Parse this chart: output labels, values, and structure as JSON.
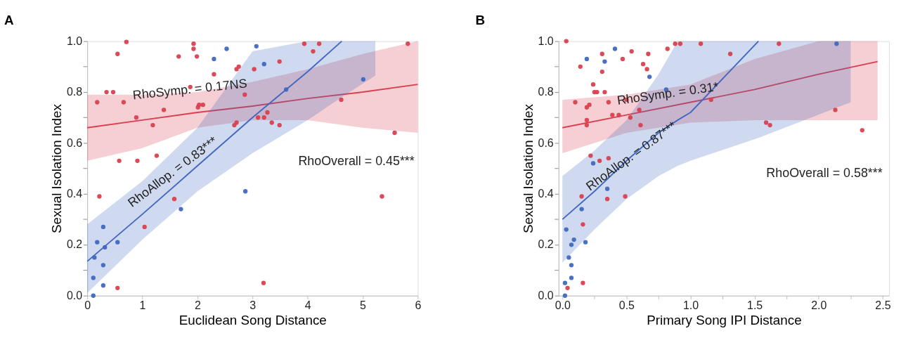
{
  "chart_data": [
    {
      "type": "scatter",
      "title": "A",
      "xlabel": "Euclidean Song Distance",
      "ylabel": "Sexual Isolation Index",
      "xlim": [
        0,
        6
      ],
      "ylim": [
        0,
        1.0
      ],
      "xticks": [
        0,
        1,
        2,
        3,
        4,
        5,
        6
      ],
      "yticks": [
        {
          "value": 0,
          "label": "0.0"
        },
        {
          "value": 0.1,
          "label": null
        },
        {
          "value": 0.2,
          "label": "0.2"
        },
        {
          "value": 0.3,
          "label": null
        },
        {
          "value": 0.4,
          "label": "0.4"
        },
        {
          "value": 0.5,
          "label": null
        },
        {
          "value": 0.6,
          "label": "0.6"
        },
        {
          "value": 0.7,
          "label": null
        },
        {
          "value": 0.8,
          "label": "0.8"
        },
        {
          "value": 0.9,
          "label": null
        },
        {
          "value": 1.0,
          "label": "1.0"
        }
      ],
      "grid": false,
      "legend": false,
      "marker": "circle",
      "series": [
        {
          "type": "line",
          "marker": "none",
          "line_style": "solid",
          "color": "#d9404f",
          "x": [
            0,
            1,
            2,
            3,
            4,
            5,
            6
          ],
          "values": [
            0.66,
            0.69,
            0.72,
            0.745,
            0.775,
            0.8,
            0.83
          ],
          "upper": [
            0.79,
            0.79,
            0.8,
            0.84,
            0.89,
            0.95,
            1.0
          ],
          "lower": [
            0.53,
            0.58,
            0.66,
            0.69,
            0.69,
            0.66,
            0.64
          ]
        },
        {
          "type": "line",
          "marker": "none",
          "line_style": "solid",
          "color": "#4068c0",
          "x": [
            0,
            1,
            2,
            3,
            4,
            4.62,
            5.23
          ],
          "values": [
            0.135,
            0.32,
            0.51,
            0.7,
            0.88,
            1.0,
            null
          ],
          "upper": [
            0.28,
            0.45,
            0.66,
            0.96,
            1.0,
            1.0,
            1.0
          ],
          "lower": [
            0.01,
            0.22,
            0.41,
            0.56,
            0.69,
            0.78,
            0.865
          ]
        },
        {
          "color": "#d9404f",
          "x": [
            0.71,
            0.55,
            0.18,
            0.66,
            0.35,
            0.47,
            0.89,
            1.19,
            0.91,
            0.58,
            1.26,
            0.22,
            1.04,
            1.58,
            0.55,
            1.66,
            1.93,
            1.93,
            1.99,
            1.87,
            2.3,
            2.71,
            2.75,
            3.03,
            2.01,
            2.03,
            2.1,
            1.39,
            2.67,
            2.71,
            2.86,
            3.1,
            3.21,
            3.27,
            3.35,
            3.49,
            3.49,
            3.94,
            4.1,
            4.21,
            4.61,
            5.58,
            5.35,
            5.82,
            3.2
          ],
          "values": [
            0.997,
            0.95,
            0.76,
            0.76,
            0.8,
            0.8,
            0.7,
            0.67,
            0.53,
            0.53,
            0.55,
            0.39,
            0.27,
            0.38,
            0.03,
            0.94,
            0.99,
            0.97,
            0.94,
            0.82,
            0.87,
            0.89,
            0.9,
            0.89,
            0.74,
            0.75,
            0.75,
            0.73,
            0.67,
            0.68,
            0.79,
            0.7,
            0.7,
            0.72,
            0.68,
            0.67,
            0.92,
            0.99,
            0.96,
            0.99,
            0.77,
            0.64,
            0.39,
            0.99,
            0.05
          ]
        },
        {
          "color": "#4068c0",
          "x": [
            0.11,
            0.11,
            0.13,
            0.18,
            0.29,
            0.32,
            0.29,
            0.29,
            0.55,
            1.7,
            2.53,
            2.3,
            3.07,
            3.21,
            3.61,
            2.87,
            5.01
          ],
          "values": [
            0.0,
            0.07,
            0.15,
            0.21,
            0.27,
            0.19,
            0.12,
            0.04,
            0.21,
            0.34,
            0.97,
            0.93,
            0.98,
            0.91,
            0.81,
            0.41,
            0.85
          ]
        }
      ],
      "annotations": [
        "RhoSymp. = 0.17NS",
        "RhoAllop. = 0.83***",
        "RhoOverall = 0.45***"
      ]
    },
    {
      "type": "scatter",
      "title": "B",
      "xlabel": "Primary Song IPI Distance",
      "ylabel": "Sexual Isolation Index",
      "xlim": [
        -0.03,
        2.55
      ],
      "ylim": [
        0,
        1.0
      ],
      "xticks": [
        {
          "value": 0,
          "label": "0.0"
        },
        {
          "value": 0.25,
          "label": null
        },
        {
          "value": 0.5,
          "label": "0.5"
        },
        {
          "value": 0.75,
          "label": null
        },
        {
          "value": 1.0,
          "label": "1.0"
        },
        {
          "value": 1.25,
          "label": null
        },
        {
          "value": 1.5,
          "label": "1.5"
        },
        {
          "value": 1.75,
          "label": null
        },
        {
          "value": 2.0,
          "label": "2.0"
        },
        {
          "value": 2.25,
          "label": null
        },
        {
          "value": 2.5,
          "label": "2.5"
        }
      ],
      "yticks": [
        {
          "value": 0,
          "label": "0.0"
        },
        {
          "value": 0.1,
          "label": null
        },
        {
          "value": 0.2,
          "label": "0.2"
        },
        {
          "value": 0.3,
          "label": null
        },
        {
          "value": 0.4,
          "label": "0.4"
        },
        {
          "value": 0.5,
          "label": null
        },
        {
          "value": 0.6,
          "label": "0.6"
        },
        {
          "value": 0.7,
          "label": null
        },
        {
          "value": 0.8,
          "label": "0.8"
        },
        {
          "value": 0.9,
          "label": null
        },
        {
          "value": 1.0,
          "label": "1.0"
        }
      ],
      "grid": false,
      "legend": false,
      "marker": "circle",
      "series": [
        {
          "type": "line",
          "marker": "none",
          "line_style": "solid",
          "color": "#d9404f",
          "x": [
            0,
            0.5,
            1,
            1.5,
            2,
            2.46
          ],
          "values": [
            0.66,
            0.71,
            0.76,
            0.81,
            0.87,
            0.92
          ],
          "upper": [
            0.77,
            0.79,
            0.83,
            0.93,
            1.0,
            1.0
          ],
          "lower": [
            0.56,
            0.64,
            0.68,
            0.69,
            0.69,
            0.69
          ]
        },
        {
          "type": "line",
          "marker": "none",
          "line_style": "solid",
          "color": "#4068c0",
          "x": [
            0,
            0.25,
            0.5,
            0.75,
            0.9,
            1.0,
            1.53,
            2.25
          ],
          "values": [
            0.3,
            0.41,
            0.53,
            0.64,
            0.69,
            0.72,
            1.0,
            null
          ],
          "upper": [
            0.47,
            0.57,
            0.69,
            0.87,
            1.0,
            1.0,
            1.0,
            1.0
          ],
          "lower": [
            0.13,
            0.26,
            0.38,
            0.47,
            0.51,
            0.53,
            0.62,
            0.76
          ]
        },
        {
          "color": "#d9404f",
          "x": [
            0.03,
            0.14,
            0.31,
            0.31,
            0.54,
            0.47,
            0.67,
            0.63,
            0.66,
            0.82,
            0.88,
            0.92,
            0.24,
            0.25,
            0.27,
            0.33,
            0.1,
            0.19,
            0.21,
            0.36,
            0.5,
            0.19,
            0.19,
            0.39,
            0.44,
            0.53,
            0.6,
            0.61,
            0.22,
            0.29,
            0.36,
            0.35,
            0.49,
            0.16,
            0.15,
            0.04,
            0.16,
            1.69,
            1.31,
            1.16,
            1.59,
            1.62,
            2.13,
            2.34,
            1.08
          ],
          "values": [
            1.0,
            0.9,
            0.95,
            0.88,
            0.96,
            0.93,
            0.95,
            0.91,
            0.89,
            0.97,
            0.99,
            0.99,
            0.83,
            0.8,
            0.8,
            0.8,
            0.76,
            0.74,
            0.75,
            0.76,
            0.77,
            0.69,
            0.67,
            0.71,
            0.71,
            0.7,
            0.73,
            0.67,
            0.55,
            0.53,
            0.54,
            0.38,
            0.39,
            0.28,
            0.39,
            0.03,
            0.05,
            0.99,
            0.95,
            0.77,
            0.68,
            0.67,
            0.73,
            0.65,
            0.99
          ]
        },
        {
          "color": "#4068c0",
          "x": [
            0.19,
            0.41,
            0.33,
            0.68,
            0.81,
            2.14,
            0.24,
            0.35,
            0.03,
            0.15,
            0.09,
            0.07,
            0.05,
            0.07,
            0.07,
            0.18,
            0.02,
            0.02
          ],
          "values": [
            0.93,
            0.97,
            0.92,
            0.86,
            0.81,
            0.99,
            0.52,
            0.42,
            0.26,
            0.34,
            0.22,
            0.2,
            0.15,
            0.12,
            0.07,
            0.21,
            0.05,
            0.0
          ]
        }
      ],
      "annotations": [
        "RhoSymp. = 0.31*",
        "RhoAllop. = 0.87***",
        "RhoOverall = 0.58***"
      ]
    }
  ]
}
